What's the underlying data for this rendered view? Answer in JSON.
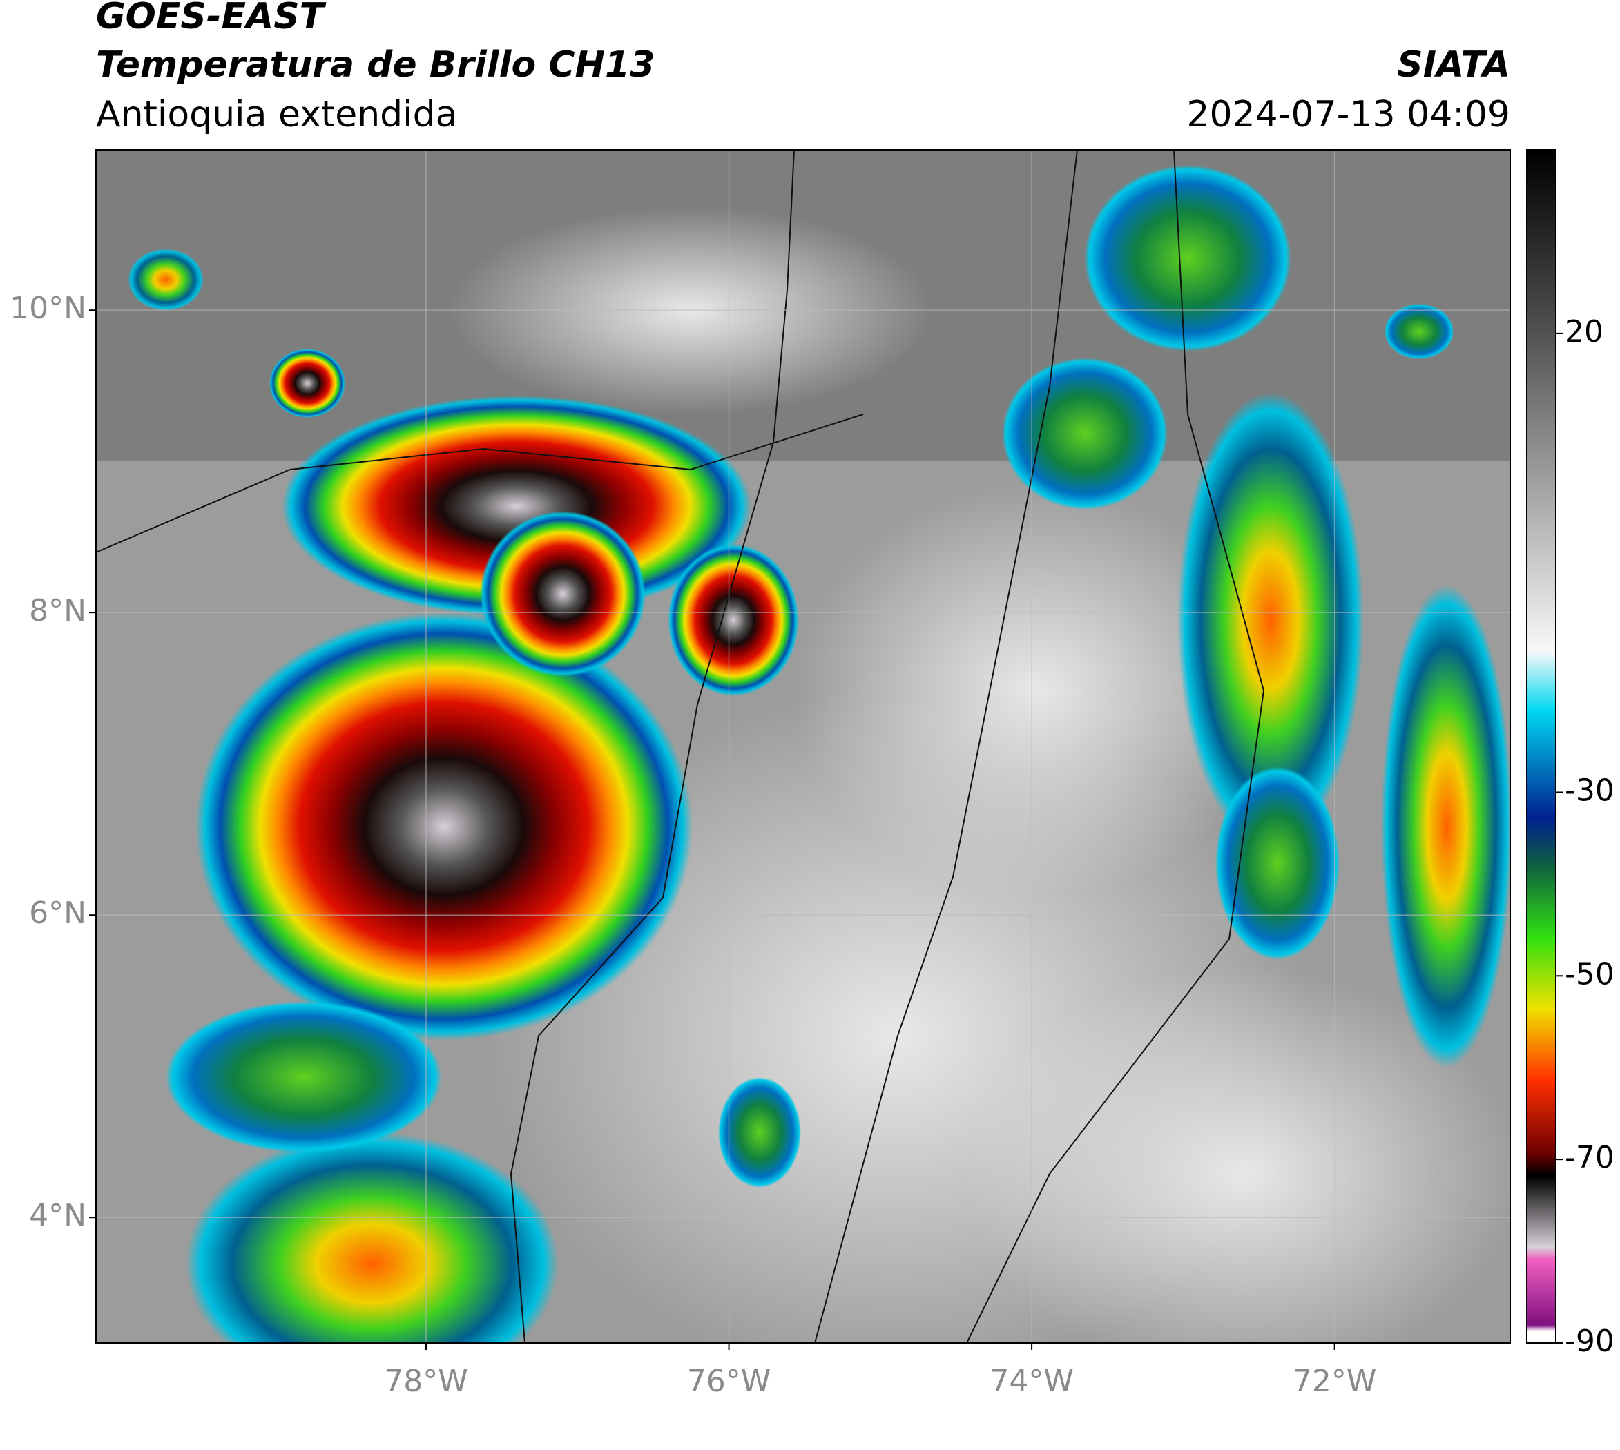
{
  "header": {
    "satellite": "GOES-EAST",
    "product": "Temperatura de Brillo CH13",
    "region": "Antioquia extendida",
    "source": "SIATA",
    "timestamp": "2024-07-13 04:09"
  },
  "map": {
    "xlim": [
      -80.18,
      -70.84
    ],
    "ylim": [
      3.17,
      11.06
    ],
    "xticks": [
      {
        "value": -78,
        "label": "78°W"
      },
      {
        "value": -76,
        "label": "76°W"
      },
      {
        "value": -74,
        "label": "74°W"
      },
      {
        "value": -72,
        "label": "72°W"
      }
    ],
    "yticks": [
      {
        "value": 4,
        "label": "4°N"
      },
      {
        "value": 6,
        "label": "6°N"
      },
      {
        "value": 8,
        "label": "8°N"
      },
      {
        "value": 10,
        "label": "10°N"
      }
    ],
    "grid": true
  },
  "colorbar": {
    "lim": [
      -90,
      40
    ],
    "ticks": [
      20,
      -30,
      -50,
      -70,
      -90
    ]
  }
}
